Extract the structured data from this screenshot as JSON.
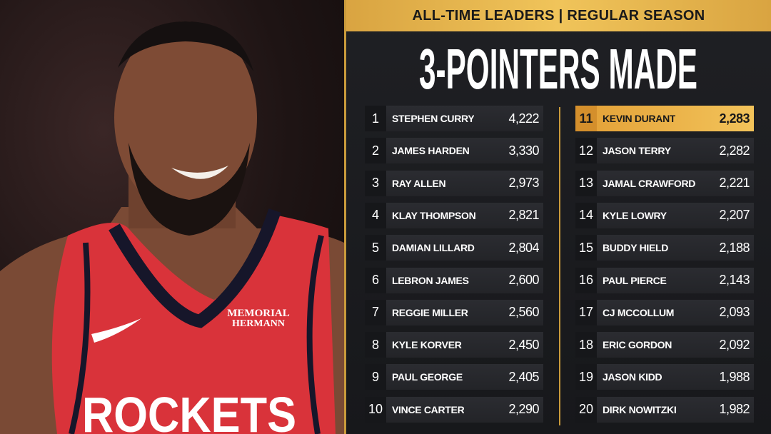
{
  "header": {
    "subtitle": "ALL-TIME LEADERS | REGULAR SEASON",
    "title": "3-POINTERS MADE"
  },
  "photo": {
    "jersey_sponsor_line1": "MEMORIAL",
    "jersey_sponsor_line2": "HERMANN",
    "jersey_team": "ROCKETS",
    "jersey_color": "#d9333a"
  },
  "colors": {
    "accent": "#e8b54d",
    "background": "#1b1c1f",
    "highlight": "#f0bd55"
  },
  "leaders": [
    {
      "rank": "1",
      "name": "STEPHEN CURRY",
      "value": "4,222"
    },
    {
      "rank": "2",
      "name": "JAMES HARDEN",
      "value": "3,330"
    },
    {
      "rank": "3",
      "name": "RAY ALLEN",
      "value": "2,973"
    },
    {
      "rank": "4",
      "name": "KLAY THOMPSON",
      "value": "2,821"
    },
    {
      "rank": "5",
      "name": "DAMIAN LILLARD",
      "value": "2,804"
    },
    {
      "rank": "6",
      "name": "LEBRON JAMES",
      "value": "2,600"
    },
    {
      "rank": "7",
      "name": "REGGIE MILLER",
      "value": "2,560"
    },
    {
      "rank": "8",
      "name": "KYLE KORVER",
      "value": "2,450"
    },
    {
      "rank": "9",
      "name": "PAUL GEORGE",
      "value": "2,405"
    },
    {
      "rank": "10",
      "name": "VINCE CARTER",
      "value": "2,290"
    },
    {
      "rank": "11",
      "name": "KEVIN DURANT",
      "value": "2,283",
      "highlighted": true
    },
    {
      "rank": "12",
      "name": "JASON TERRY",
      "value": "2,282"
    },
    {
      "rank": "13",
      "name": "JAMAL CRAWFORD",
      "value": "2,221"
    },
    {
      "rank": "14",
      "name": "KYLE LOWRY",
      "value": "2,207"
    },
    {
      "rank": "15",
      "name": "BUDDY HIELD",
      "value": "2,188"
    },
    {
      "rank": "16",
      "name": "PAUL PIERCE",
      "value": "2,143"
    },
    {
      "rank": "17",
      "name": "CJ MCCOLLUM",
      "value": "2,093"
    },
    {
      "rank": "18",
      "name": "ERIC GORDON",
      "value": "2,092"
    },
    {
      "rank": "19",
      "name": "JASON KIDD",
      "value": "1,988"
    },
    {
      "rank": "20",
      "name": "DIRK NOWITZKI",
      "value": "1,982"
    }
  ]
}
